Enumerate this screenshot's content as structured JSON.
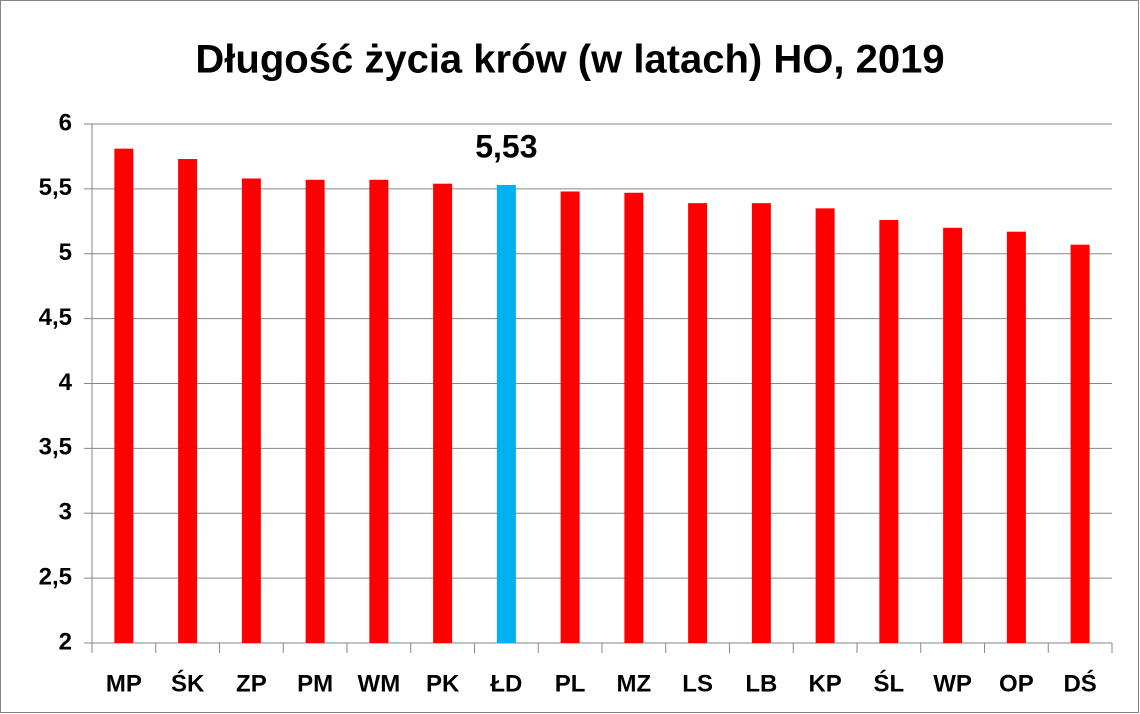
{
  "chart_data": {
    "type": "bar",
    "title": "Długość życia krów (w latach) HO, 2019",
    "categories": [
      "MP",
      "ŚK",
      "ZP",
      "PM",
      "WM",
      "PK",
      "ŁD",
      "PL",
      "MZ",
      "LS",
      "LB",
      "KP",
      "ŚL",
      "WP",
      "OP",
      "DŚ"
    ],
    "values": [
      5.81,
      5.73,
      5.58,
      5.57,
      5.57,
      5.54,
      5.53,
      5.48,
      5.47,
      5.39,
      5.39,
      5.35,
      5.26,
      5.2,
      5.17,
      5.07
    ],
    "value_labels": [
      null,
      null,
      null,
      null,
      null,
      null,
      "5,53",
      null,
      null,
      null,
      null,
      null,
      null,
      null,
      null,
      null
    ],
    "colors": [
      "#ff0000",
      "#ff0000",
      "#ff0000",
      "#ff0000",
      "#ff0000",
      "#ff0000",
      "#00b0f0",
      "#ff0000",
      "#ff0000",
      "#ff0000",
      "#ff0000",
      "#ff0000",
      "#ff0000",
      "#ff0000",
      "#ff0000",
      "#ff0000"
    ],
    "ylim": [
      2,
      6
    ],
    "yticks": [
      2,
      {
        "value": 2.5,
        "label": "2,5"
      },
      3,
      {
        "value": 3.5,
        "label": "3,5"
      },
      4,
      {
        "value": 4.5,
        "label": "4,5"
      },
      5,
      {
        "value": 5.5,
        "label": "5,5"
      },
      6
    ],
    "grid": true
  }
}
